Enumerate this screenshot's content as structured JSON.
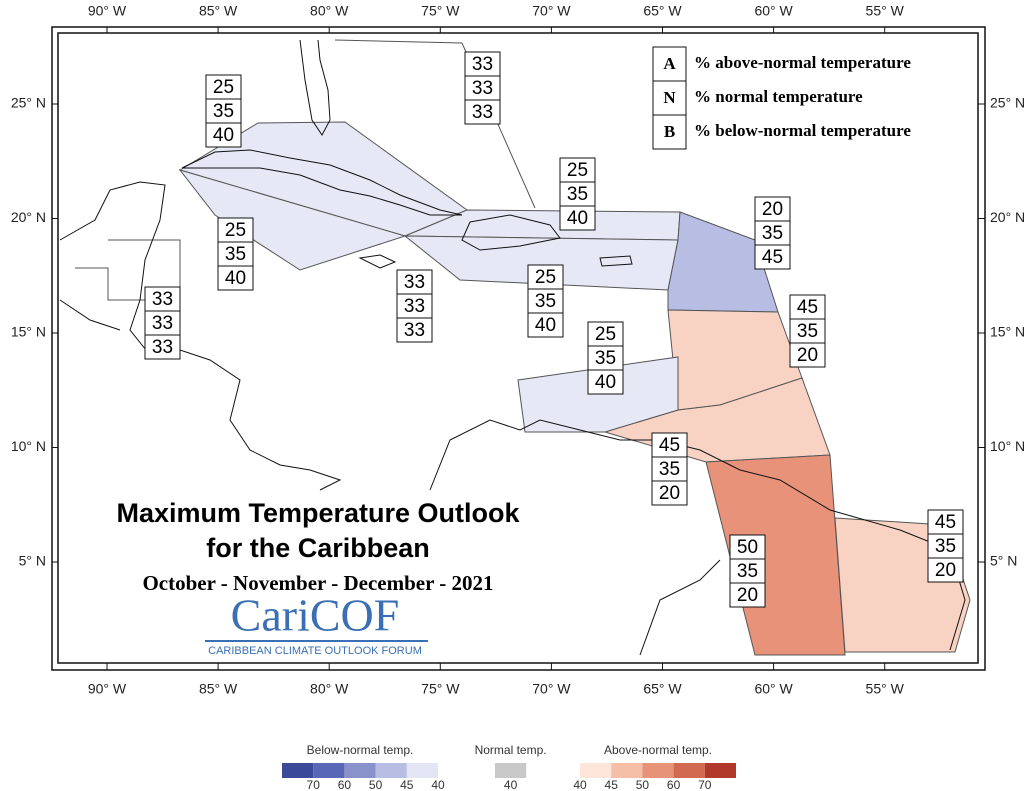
{
  "title": {
    "line1": "Maximum Temperature Outlook",
    "line2": "for the Caribbean",
    "period": "October - November - December - 2021",
    "logo": "CariCOF",
    "logo_sub": "CARIBBEAN CLIMATE OUTLOOK FORUM"
  },
  "key": [
    {
      "letter": "A",
      "text": "% above-normal temperature"
    },
    {
      "letter": "N",
      "text": "% normal temperature"
    },
    {
      "letter": "B",
      "text": "% below-normal temperature"
    }
  ],
  "lon_ticks": [
    {
      "value": -90,
      "label": "90° W"
    },
    {
      "value": -85,
      "label": "85° W"
    },
    {
      "value": -80,
      "label": "80° W"
    },
    {
      "value": -75,
      "label": "75° W"
    },
    {
      "value": -70,
      "label": "70° W"
    },
    {
      "value": -65,
      "label": "65° W"
    },
    {
      "value": -60,
      "label": "60° W"
    },
    {
      "value": -55,
      "label": "55° W"
    }
  ],
  "lat_ticks": [
    {
      "value": 25,
      "label": "25° N"
    },
    {
      "value": 20,
      "label": "20° N"
    },
    {
      "value": 15,
      "label": "15° N"
    },
    {
      "value": 10,
      "label": "10° N"
    },
    {
      "value": 5,
      "label": "5° N"
    }
  ],
  "regions": [
    {
      "A": 33,
      "N": 33,
      "B": 33
    },
    {
      "A": 25,
      "N": 35,
      "B": 40,
      "color": "#e6e8f6"
    },
    {
      "A": 25,
      "N": 35,
      "B": 40,
      "color": "#e6e8f6"
    },
    {
      "A": 33,
      "N": 33,
      "B": 33
    },
    {
      "A": 25,
      "N": 35,
      "B": 40,
      "color": "#e6e8f6"
    },
    {
      "A": 25,
      "N": 35,
      "B": 40,
      "color": "#e6e8f6"
    },
    {
      "A": 20,
      "N": 35,
      "B": 45,
      "color": "#b8bde3"
    },
    {
      "A": 45,
      "N": 35,
      "B": 20,
      "color": "#f8d3c3"
    },
    {
      "A": 45,
      "N": 35,
      "B": 20,
      "color": "#f8d3c3"
    },
    {
      "A": 50,
      "N": 35,
      "B": 20,
      "color": "#e8927a"
    },
    {
      "A": 45,
      "N": 35,
      "B": 20,
      "color": "#f8d3c3"
    },
    {
      "A": 25,
      "N": 35,
      "B": 40,
      "color": "#e6e8f6"
    },
    {
      "A": 33,
      "N": 33,
      "B": 33
    }
  ],
  "colorbar": [
    {
      "title": "Below-normal temp.",
      "labels": [
        70,
        60,
        50,
        45,
        40
      ],
      "colors": [
        "#3b4a98",
        "#5868b6",
        "#8a92cb",
        "#b8bde3",
        "#e3e5f5"
      ]
    },
    {
      "title": "Normal temp.",
      "labels": [
        40
      ],
      "colors": [
        "#c8c8c8"
      ]
    },
    {
      "title": "Above-normal temp.",
      "labels": [
        40,
        45,
        50,
        60,
        70
      ],
      "colors": [
        "#fde5da",
        "#f5bea7",
        "#e79377",
        "#d26a52",
        "#b1392b"
      ]
    }
  ]
}
